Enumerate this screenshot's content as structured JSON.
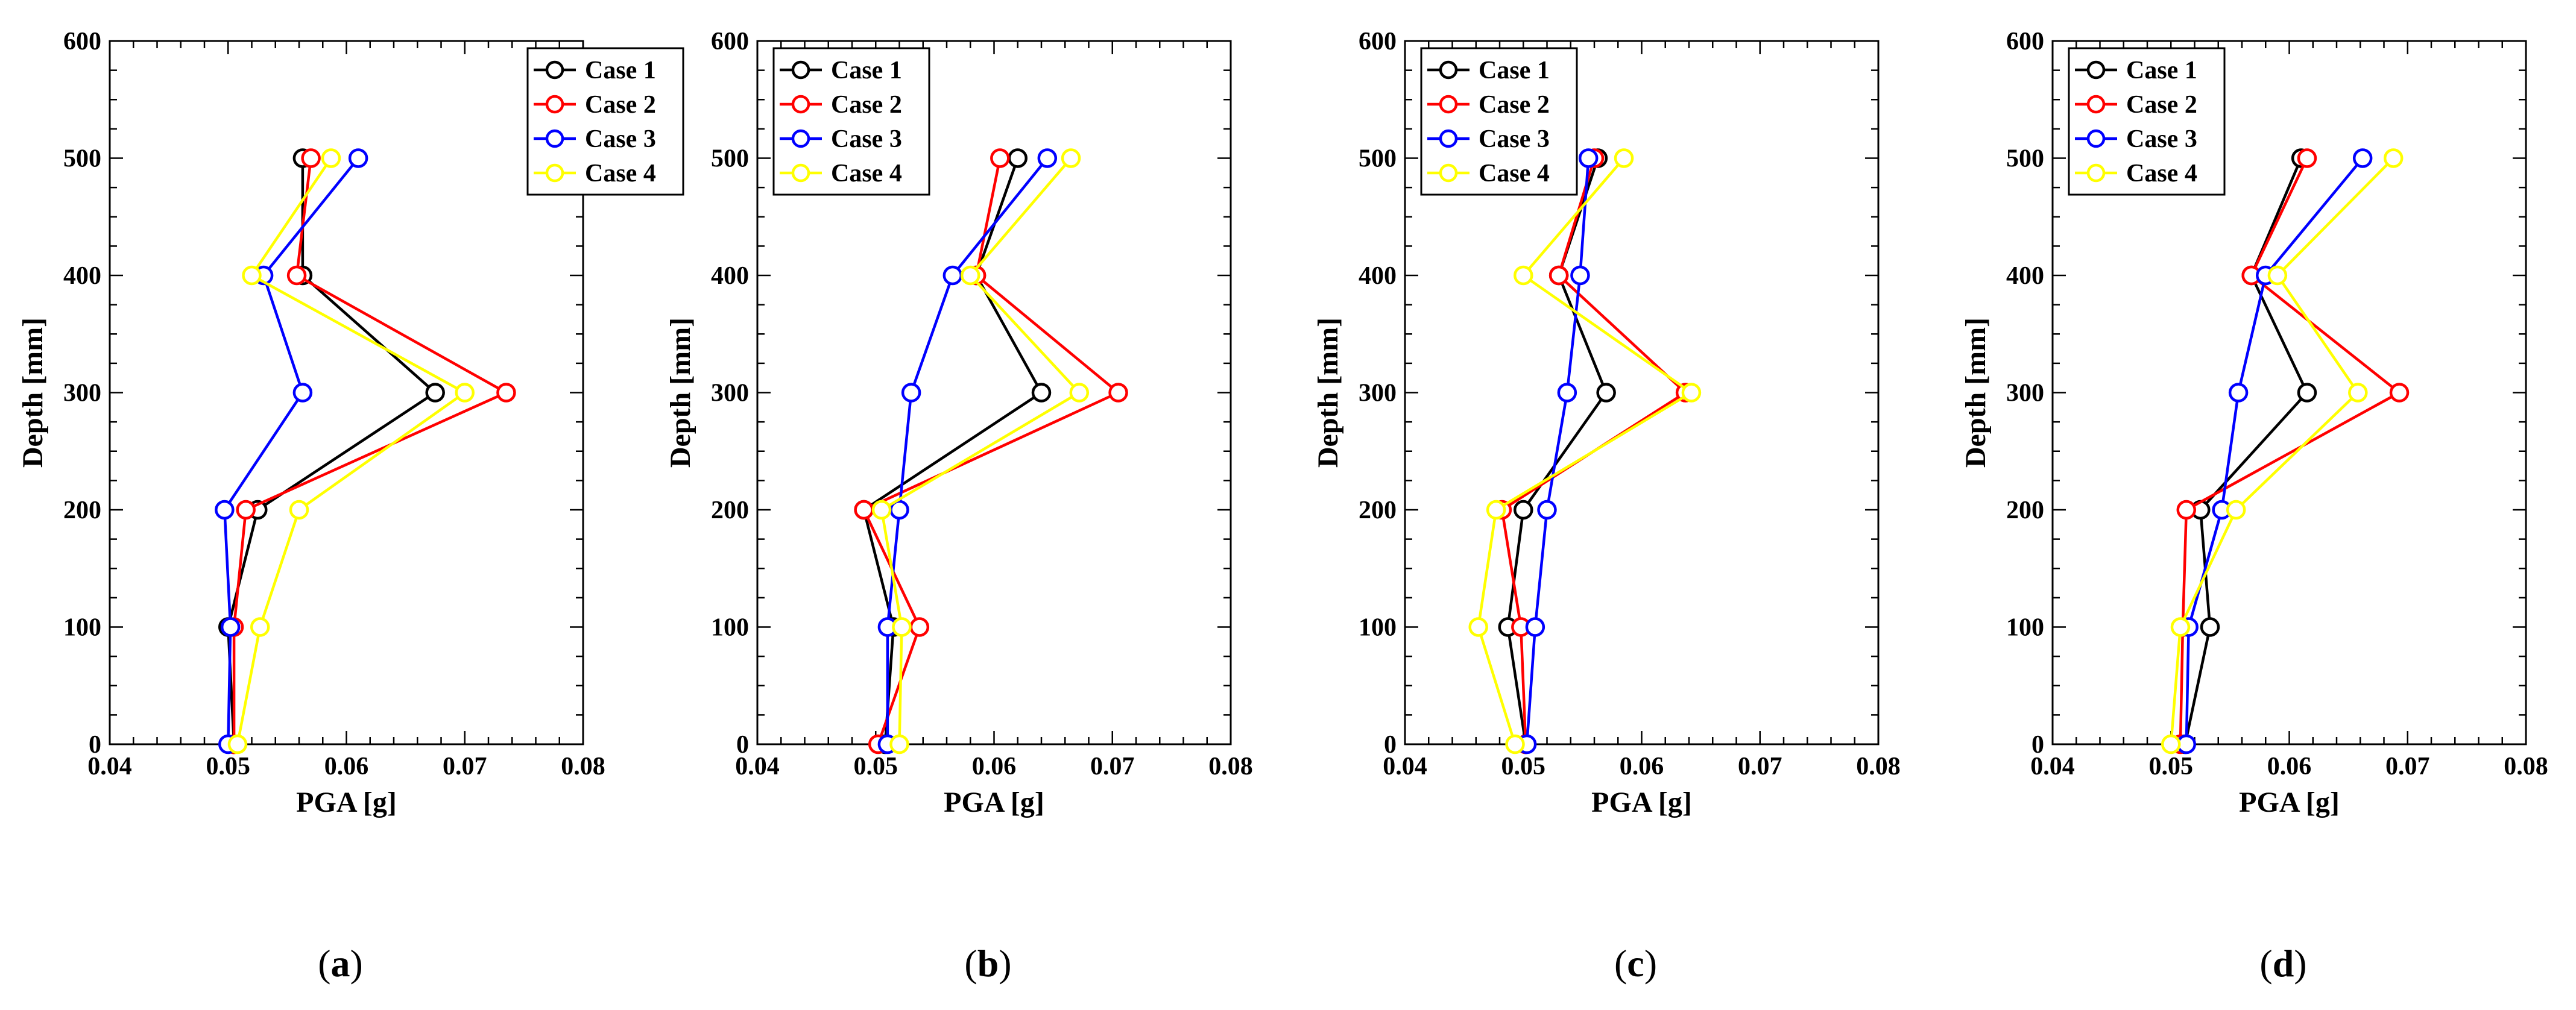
{
  "chart_data": [
    {
      "type": "line",
      "caption_pre": "(",
      "caption_letter": "a",
      "caption_post": ")",
      "xlabel": "PGA [g]",
      "ylabel": "Depth [mm]",
      "xlim": [
        0.04,
        0.08
      ],
      "ylim": [
        0,
        600
      ],
      "xticks": [
        "0.04",
        "0.05",
        "0.06",
        "0.07",
        "0.08"
      ],
      "yticks": [
        "0",
        "100",
        "200",
        "300",
        "400",
        "500",
        "600"
      ],
      "legend_position": "top-right",
      "grid": false,
      "series": [
        {
          "name": "Case 1",
          "color": "#000000",
          "x": [
            0.0505,
            0.05,
            0.0525,
            0.0675,
            0.0563,
            0.0563
          ],
          "y": [
            0,
            100,
            200,
            300,
            400,
            500
          ]
        },
        {
          "name": "Case 2",
          "color": "#ff0000",
          "x": [
            0.0505,
            0.0505,
            0.0515,
            0.0735,
            0.0558,
            0.057
          ],
          "y": [
            0,
            100,
            200,
            300,
            400,
            500
          ]
        },
        {
          "name": "Case 3",
          "color": "#0000ff",
          "x": [
            0.05,
            0.0502,
            0.0497,
            0.0563,
            0.053,
            0.061
          ],
          "y": [
            0,
            100,
            200,
            300,
            400,
            500
          ]
        },
        {
          "name": "Case 4",
          "color": "#ffff00",
          "x": [
            0.0508,
            0.0527,
            0.056,
            0.07,
            0.052,
            0.0587
          ],
          "y": [
            0,
            100,
            200,
            300,
            400,
            500
          ]
        }
      ]
    },
    {
      "type": "line",
      "caption_pre": "(",
      "caption_letter": "b",
      "caption_post": ")",
      "xlabel": "PGA [g]",
      "ylabel": "Depth [mm]",
      "xlim": [
        0.04,
        0.08
      ],
      "ylim": [
        0,
        600
      ],
      "xticks": [
        "0.04",
        "0.05",
        "0.06",
        "0.07",
        "0.08"
      ],
      "yticks": [
        "0",
        "100",
        "200",
        "300",
        "400",
        "500",
        "600"
      ],
      "legend_position": "top-left",
      "grid": false,
      "series": [
        {
          "name": "Case 1",
          "color": "#000000",
          "x": [
            0.0508,
            0.0515,
            0.049,
            0.064,
            0.0585,
            0.062
          ],
          "y": [
            0,
            100,
            200,
            300,
            400,
            500
          ]
        },
        {
          "name": "Case 2",
          "color": "#ff0000",
          "x": [
            0.0502,
            0.0537,
            0.049,
            0.0705,
            0.0585,
            0.0605
          ],
          "y": [
            0,
            100,
            200,
            300,
            400,
            500
          ]
        },
        {
          "name": "Case 3",
          "color": "#0000ff",
          "x": [
            0.051,
            0.051,
            0.052,
            0.053,
            0.0565,
            0.0645
          ],
          "y": [
            0,
            100,
            200,
            300,
            400,
            500
          ]
        },
        {
          "name": "Case 4",
          "color": "#ffff00",
          "x": [
            0.052,
            0.0522,
            0.0505,
            0.0672,
            0.058,
            0.0665
          ],
          "y": [
            0,
            100,
            200,
            300,
            400,
            500
          ]
        }
      ]
    },
    {
      "type": "line",
      "caption_pre": "(",
      "caption_letter": "c",
      "caption_post": ")",
      "xlabel": "PGA [g]",
      "ylabel": "Depth [mm]",
      "xlim": [
        0.04,
        0.08
      ],
      "ylim": [
        0,
        600
      ],
      "xticks": [
        "0.04",
        "0.05",
        "0.06",
        "0.07",
        "0.08"
      ],
      "yticks": [
        "0",
        "100",
        "200",
        "300",
        "400",
        "500",
        "600"
      ],
      "legend_position": "top-left",
      "grid": false,
      "series": [
        {
          "name": "Case 1",
          "color": "#000000",
          "x": [
            0.0502,
            0.0487,
            0.05,
            0.057,
            0.053,
            0.0563
          ],
          "y": [
            0,
            100,
            200,
            300,
            400,
            500
          ]
        },
        {
          "name": "Case 2",
          "color": "#ff0000",
          "x": [
            0.0502,
            0.0498,
            0.0482,
            0.0637,
            0.053,
            0.056
          ],
          "y": [
            0,
            100,
            200,
            300,
            400,
            500
          ]
        },
        {
          "name": "Case 3",
          "color": "#0000ff",
          "x": [
            0.0503,
            0.051,
            0.052,
            0.0537,
            0.0548,
            0.0555
          ],
          "y": [
            0,
            100,
            200,
            300,
            400,
            500
          ]
        },
        {
          "name": "Case 4",
          "color": "#ffff00",
          "x": [
            0.0493,
            0.0462,
            0.0477,
            0.0642,
            0.05,
            0.0585
          ],
          "y": [
            0,
            100,
            200,
            300,
            400,
            500
          ]
        }
      ]
    },
    {
      "type": "line",
      "caption_pre": "(",
      "caption_letter": "d",
      "caption_post": ")",
      "xlabel": "PGA [g]",
      "ylabel": "Depth [mm]",
      "xlim": [
        0.04,
        0.08
      ],
      "ylim": [
        0,
        600
      ],
      "xticks": [
        "0.04",
        "0.05",
        "0.06",
        "0.07",
        "0.08"
      ],
      "yticks": [
        "0",
        "100",
        "200",
        "300",
        "400",
        "500",
        "600"
      ],
      "legend_position": "top-left",
      "grid": false,
      "series": [
        {
          "name": "Case 1",
          "color": "#000000",
          "x": [
            0.0512,
            0.0533,
            0.0525,
            0.0615,
            0.0568,
            0.061
          ],
          "y": [
            0,
            100,
            200,
            300,
            400,
            500
          ]
        },
        {
          "name": "Case 2",
          "color": "#ff0000",
          "x": [
            0.0508,
            0.051,
            0.0513,
            0.0693,
            0.0568,
            0.0615
          ],
          "y": [
            0,
            100,
            200,
            300,
            400,
            500
          ]
        },
        {
          "name": "Case 3",
          "color": "#0000ff",
          "x": [
            0.0513,
            0.0515,
            0.0543,
            0.0557,
            0.058,
            0.0662
          ],
          "y": [
            0,
            100,
            200,
            300,
            400,
            500
          ]
        },
        {
          "name": "Case 4",
          "color": "#ffff00",
          "x": [
            0.05,
            0.0508,
            0.0555,
            0.0658,
            0.059,
            0.0688
          ],
          "y": [
            0,
            100,
            200,
            300,
            400,
            500
          ]
        }
      ]
    }
  ]
}
